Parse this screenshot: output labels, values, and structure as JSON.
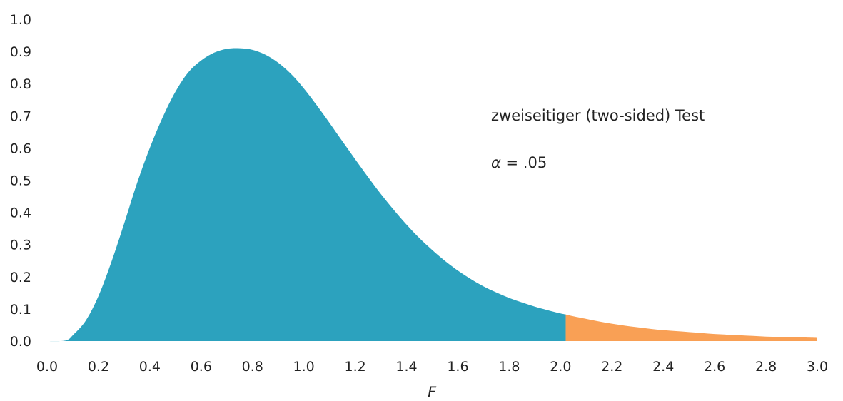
{
  "chart_data": {
    "type": "area",
    "xlabel": "F",
    "ylabel": "",
    "xlim": [
      0.0,
      3.0
    ],
    "ylim": [
      0.0,
      1.0
    ],
    "x_ticks": [
      "0.0",
      "0.2",
      "0.4",
      "0.6",
      "0.8",
      "1.0",
      "1.2",
      "1.4",
      "1.6",
      "1.8",
      "2.0",
      "2.2",
      "2.4",
      "2.6",
      "2.8",
      "3.0"
    ],
    "y_ticks": [
      "0.0",
      "0.1",
      "0.2",
      "0.3",
      "0.4",
      "0.5",
      "0.6",
      "0.7",
      "0.8",
      "0.9",
      "1.0"
    ],
    "grid": false,
    "legend": "none",
    "critical_value": 2.02,
    "colors": {
      "acceptance_region": "#2ca2be",
      "rejection_region": "#f9a055"
    },
    "x": [
      0.0,
      0.05,
      0.08,
      0.1,
      0.15,
      0.2,
      0.25,
      0.3,
      0.35,
      0.4,
      0.45,
      0.5,
      0.55,
      0.6,
      0.65,
      0.7,
      0.75,
      0.8,
      0.85,
      0.9,
      0.95,
      1.0,
      1.05,
      1.1,
      1.15,
      1.2,
      1.25,
      1.3,
      1.35,
      1.4,
      1.45,
      1.5,
      1.55,
      1.6,
      1.65,
      1.7,
      1.75,
      1.8,
      1.85,
      1.9,
      1.95,
      2.0,
      2.02,
      2.05,
      2.1,
      2.15,
      2.2,
      2.25,
      2.3,
      2.35,
      2.4,
      2.45,
      2.5,
      2.55,
      2.6,
      2.65,
      2.7,
      2.75,
      2.8,
      2.85,
      2.9,
      2.95,
      3.0
    ],
    "y": [
      0.0,
      0.0,
      0.004,
      0.018,
      0.063,
      0.14,
      0.245,
      0.365,
      0.49,
      0.6,
      0.695,
      0.775,
      0.835,
      0.872,
      0.896,
      0.908,
      0.91,
      0.905,
      0.89,
      0.865,
      0.83,
      0.785,
      0.733,
      0.678,
      0.621,
      0.565,
      0.51,
      0.457,
      0.408,
      0.362,
      0.32,
      0.283,
      0.249,
      0.219,
      0.193,
      0.17,
      0.151,
      0.134,
      0.12,
      0.107,
      0.096,
      0.086,
      0.083,
      0.077,
      0.069,
      0.061,
      0.054,
      0.048,
      0.043,
      0.038,
      0.034,
      0.031,
      0.028,
      0.025,
      0.022,
      0.02,
      0.018,
      0.016,
      0.014,
      0.013,
      0.012,
      0.011,
      0.01
    ],
    "annotations": {
      "test_type": "zweiseitiger (two-sided) Test",
      "alpha_symbol": "α",
      "alpha_value": " = .05"
    }
  }
}
